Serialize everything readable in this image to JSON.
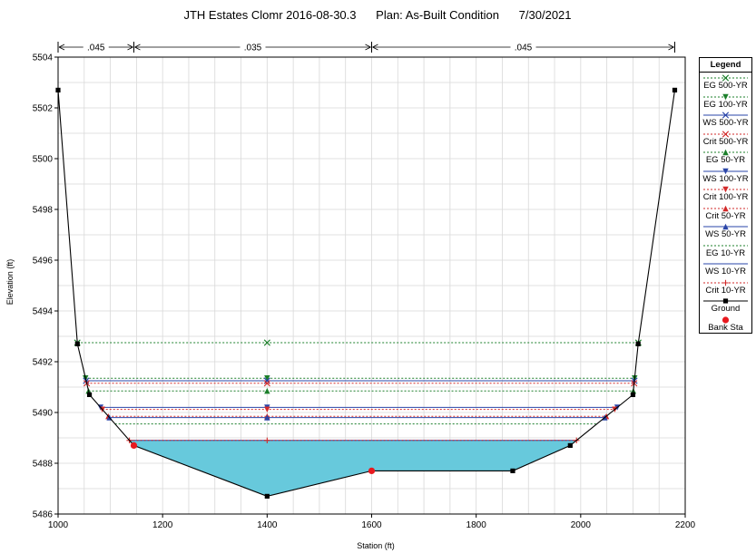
{
  "chart_data": {
    "type": "line",
    "title": "JTH Estates Clomr 2016-08-30.3      Plan: As-Built Condition      7/30/2021",
    "xlabel": "Station (ft)",
    "ylabel": "Elevation (ft)",
    "xlim": [
      1000,
      2200
    ],
    "ylim": [
      5486,
      5504
    ],
    "xticks": [
      1000,
      1200,
      1400,
      1600,
      1800,
      2000,
      2200
    ],
    "yticks": [
      5486,
      5488,
      5490,
      5492,
      5494,
      5496,
      5498,
      5500,
      5502,
      5504
    ],
    "grid": true,
    "legend_position": "right",
    "mannings_n": [
      {
        "label": ".045",
        "from": 1000,
        "to": 1145
      },
      {
        "label": ".035",
        "from": 1145,
        "to": 1600
      },
      {
        "label": ".045",
        "from": 1600,
        "to": 2180
      }
    ],
    "ground": [
      {
        "x": 1000,
        "y": 5502.7
      },
      {
        "x": 1037,
        "y": 5492.7
      },
      {
        "x": 1060,
        "y": 5490.7
      },
      {
        "x": 1145,
        "y": 5488.7
      },
      {
        "x": 1400,
        "y": 5486.7
      },
      {
        "x": 1600,
        "y": 5487.7
      },
      {
        "x": 1870,
        "y": 5487.7
      },
      {
        "x": 1980,
        "y": 5488.7
      },
      {
        "x": 2100,
        "y": 5490.7
      },
      {
        "x": 2110,
        "y": 5492.7
      },
      {
        "x": 2180,
        "y": 5502.7
      }
    ],
    "bank_stations": [
      {
        "x": 1145,
        "y": 5488.7
      },
      {
        "x": 1600,
        "y": 5487.7
      }
    ],
    "profiles": [
      {
        "name": "EG 500-YR",
        "y": 5492.75,
        "color": "#1b7f2a",
        "dash": "2,2",
        "marker": "x"
      },
      {
        "name": "EG 100-YR",
        "y": 5491.35,
        "color": "#1b7f2a",
        "dash": "2,2",
        "marker": "tri-down"
      },
      {
        "name": "WS 500-YR",
        "y": 5491.25,
        "color": "#2a45a8",
        "dash": "",
        "marker": "x"
      },
      {
        "name": "Crit 500-YR",
        "y": 5491.15,
        "color": "#d22a2a",
        "dash": "2,2",
        "marker": "x"
      },
      {
        "name": "EG 50-YR",
        "y": 5490.85,
        "color": "#1b7f2a",
        "dash": "2,2",
        "marker": "tri-up"
      },
      {
        "name": "WS 100-YR",
        "y": 5490.2,
        "color": "#2a45a8",
        "dash": "",
        "marker": "tri-down"
      },
      {
        "name": "Crit 100-YR",
        "y": 5490.12,
        "color": "#d22a2a",
        "dash": "2,2",
        "marker": "tri-down"
      },
      {
        "name": "Crit 50-YR",
        "y": 5489.85,
        "color": "#d22a2a",
        "dash": "2,2",
        "marker": "tri-up"
      },
      {
        "name": "WS 50-YR",
        "y": 5489.8,
        "color": "#2a45a8",
        "dash": "",
        "marker": "tri-up"
      },
      {
        "name": "EG 10-YR",
        "y": 5489.55,
        "color": "#1b7f2a",
        "dash": "2,2",
        "marker": "none"
      },
      {
        "name": "WS 10-YR",
        "y": 5488.9,
        "color": "#2a45a8",
        "dash": "",
        "marker": "none"
      },
      {
        "name": "Crit 10-YR",
        "y": 5488.9,
        "color": "#d22a2a",
        "dash": "2,2",
        "marker": "plus"
      }
    ],
    "water_fill": {
      "color": "#67c9dc",
      "surface": 5488.9
    },
    "legend": {
      "title": "Legend",
      "items": [
        {
          "label": "EG 500-YR",
          "color": "#1b7f2a",
          "style": "dashed",
          "marker": "x"
        },
        {
          "label": "EG 100-YR",
          "color": "#1b7f2a",
          "style": "dashed",
          "marker": "tri-down"
        },
        {
          "label": "WS 500-YR",
          "color": "#2a45a8",
          "style": "solid",
          "marker": "x"
        },
        {
          "label": "Crit 500-YR",
          "color": "#d22a2a",
          "style": "dashed",
          "marker": "x"
        },
        {
          "label": "EG 50-YR",
          "color": "#1b7f2a",
          "style": "dashed",
          "marker": "tri-up"
        },
        {
          "label": "WS 100-YR",
          "color": "#2a45a8",
          "style": "solid",
          "marker": "tri-down"
        },
        {
          "label": "Crit 100-YR",
          "color": "#d22a2a",
          "style": "dashed",
          "marker": "tri-down"
        },
        {
          "label": "Crit 50-YR",
          "color": "#d22a2a",
          "style": "dashed",
          "marker": "tri-up"
        },
        {
          "label": "WS 50-YR",
          "color": "#2a45a8",
          "style": "solid",
          "marker": "tri-up"
        },
        {
          "label": "EG 10-YR",
          "color": "#1b7f2a",
          "style": "dashed",
          "marker": "none"
        },
        {
          "label": "WS 10-YR",
          "color": "#2a45a8",
          "style": "solid",
          "marker": "none"
        },
        {
          "label": "Crit 10-YR",
          "color": "#d22a2a",
          "style": "dashed",
          "marker": "plus"
        },
        {
          "label": "Ground",
          "color": "#000000",
          "style": "solid",
          "marker": "square"
        },
        {
          "label": "Bank Sta",
          "color": "#e8191f",
          "style": "none",
          "marker": "circle"
        }
      ]
    }
  }
}
